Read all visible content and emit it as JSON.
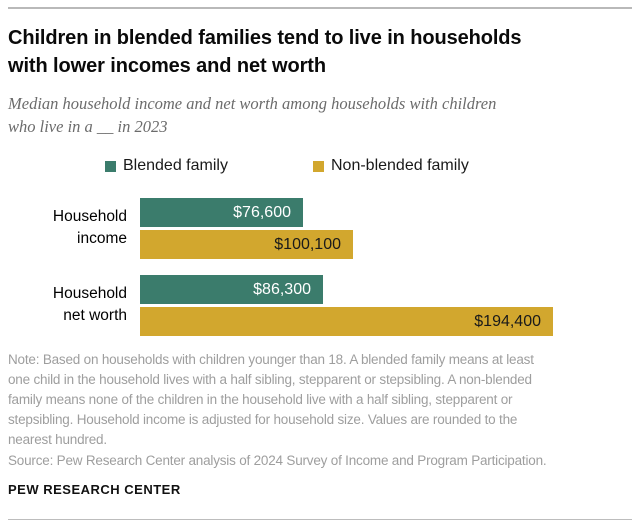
{
  "header": {
    "title": "Children in blended families tend to live in households\nwith lower incomes and net worth",
    "subtitle": "Median household income and net worth among households with children\nwho live in a __ in 2023"
  },
  "chart_data": {
    "type": "bar",
    "orientation": "horizontal",
    "title": "Children in blended families tend to live in households with lower incomes and net worth",
    "subtitle": "Median household income and net worth among households with children who live in a __ in 2023",
    "categories": [
      "Household\nincome",
      "Household\nnet worth"
    ],
    "series": [
      {
        "name": "Blended family",
        "color": "#3b7c6c",
        "label_color": "#ffffff",
        "values": [
          76600,
          86300
        ],
        "value_labels": [
          "$76,600",
          "$86,300"
        ]
      },
      {
        "name": "Non-blended family",
        "color": "#d2a72e",
        "label_color": "#1a1a1a",
        "values": [
          100100,
          194400
        ],
        "value_labels": [
          "$100,100",
          "$194,400"
        ]
      }
    ],
    "value_axis": {
      "min": 0,
      "max_shown_value": 194400,
      "gridlines": false,
      "tick_labels_visible": false
    },
    "legend_position": "top",
    "value_labels_inside_bars": true
  },
  "footer": {
    "note": "Note: Based on households with children younger than 18. A blended family means at least\none child in the household lives with a half sibling, stepparent or stepsibling. A non-blended\nfamily means none of the children in the household live with a half sibling, stepparent or\nstepsibling. Household income is adjusted for household size. Values are rounded to the\nnearest hundred.",
    "source": "Source: Pew Research Center analysis of 2024 Survey of Income and Program Participation.",
    "brand": "PEW RESEARCH CENTER"
  }
}
